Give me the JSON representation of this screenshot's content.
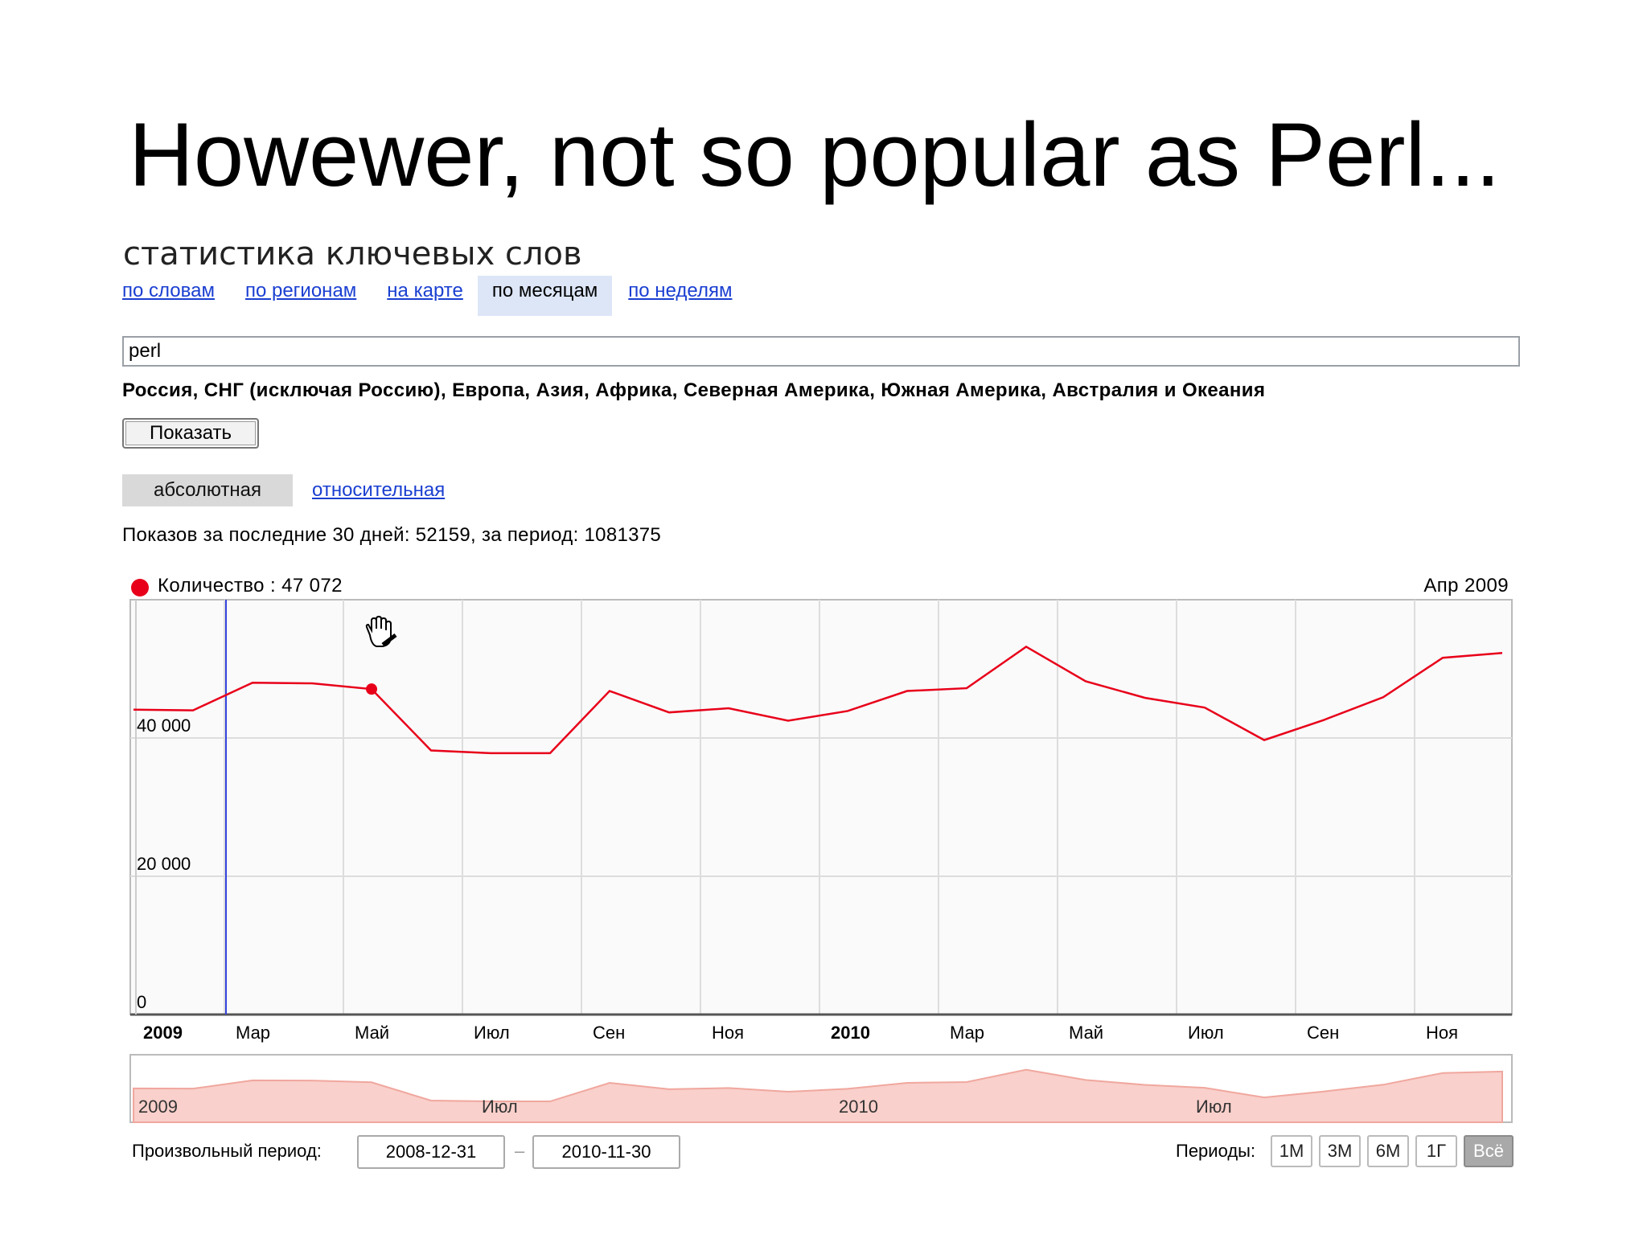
{
  "slide": {
    "title": "Howewer, not so popular as Perl..."
  },
  "header": {
    "title": "статистика ключевых слов"
  },
  "tabs": [
    {
      "label": "по словам"
    },
    {
      "label": "по регионам"
    },
    {
      "label": "на карте"
    },
    {
      "label": "по месяцам",
      "active": true
    },
    {
      "label": "по неделям"
    }
  ],
  "query": {
    "value": "perl"
  },
  "regions": "Россия, СНГ (исключая Россию), Европа, Азия, Африка, Северная Америка, Южная Америка, Австралия и Океания",
  "show_button": "Показать",
  "mode": {
    "absolute": "абсолютная",
    "relative": "относительная",
    "selected": "absolute"
  },
  "impressions": "Показов за последние 30 дней: 52159, за период: 1081375",
  "legend": {
    "text": "Количество : 47 072",
    "date": "Апр 2009",
    "marker_color": "#e8001a"
  },
  "chart_data": {
    "type": "line",
    "series": [
      {
        "name": "Количество",
        "color": "#e8001a",
        "values": [
          44100,
          44000,
          48000,
          47900,
          47072,
          38200,
          37800,
          37800,
          46800,
          43700,
          44300,
          42500,
          43900,
          46800,
          47200,
          53200,
          48200,
          45800,
          44400,
          39700,
          42600,
          45900,
          51600,
          52300
        ]
      }
    ],
    "x_labels": [
      {
        "label": "2009",
        "bold": true,
        "index": 0
      },
      {
        "label": "Мар",
        "index": 2
      },
      {
        "label": "Май",
        "index": 4
      },
      {
        "label": "Июл",
        "index": 6
      },
      {
        "label": "Сен",
        "index": 8
      },
      {
        "label": "Ноя",
        "index": 10
      },
      {
        "label": "2010",
        "bold": true,
        "index": 12
      },
      {
        "label": "Мар",
        "index": 14
      },
      {
        "label": "Май",
        "index": 16
      },
      {
        "label": "Июл",
        "index": 18
      },
      {
        "label": "Сен",
        "index": 20
      },
      {
        "label": "Ноя",
        "index": 22
      }
    ],
    "y_ticks": [
      {
        "label": "0",
        "value": 0
      },
      {
        "label": "20 000",
        "value": 20000
      },
      {
        "label": "40 000",
        "value": 40000
      }
    ],
    "ylim": [
      0,
      60000
    ],
    "highlight_index": 4,
    "cursor_index": 2,
    "grid": true,
    "navigator": {
      "labels": [
        {
          "label": "2009",
          "index": 0
        },
        {
          "label": "Июл",
          "index": 6
        },
        {
          "label": "2010",
          "index": 12
        },
        {
          "label": "Июл",
          "index": 18
        }
      ],
      "fill": "#f9d0cb",
      "stroke": "#f0a79e"
    }
  },
  "range": {
    "label": "Произвольный период:",
    "start": "2008-12-31",
    "end": "2010-11-30",
    "separator": "–"
  },
  "periods": {
    "label": "Периоды:",
    "buttons": [
      "1М",
      "3М",
      "6М",
      "1Г",
      "Всё"
    ],
    "active": "Всё"
  }
}
